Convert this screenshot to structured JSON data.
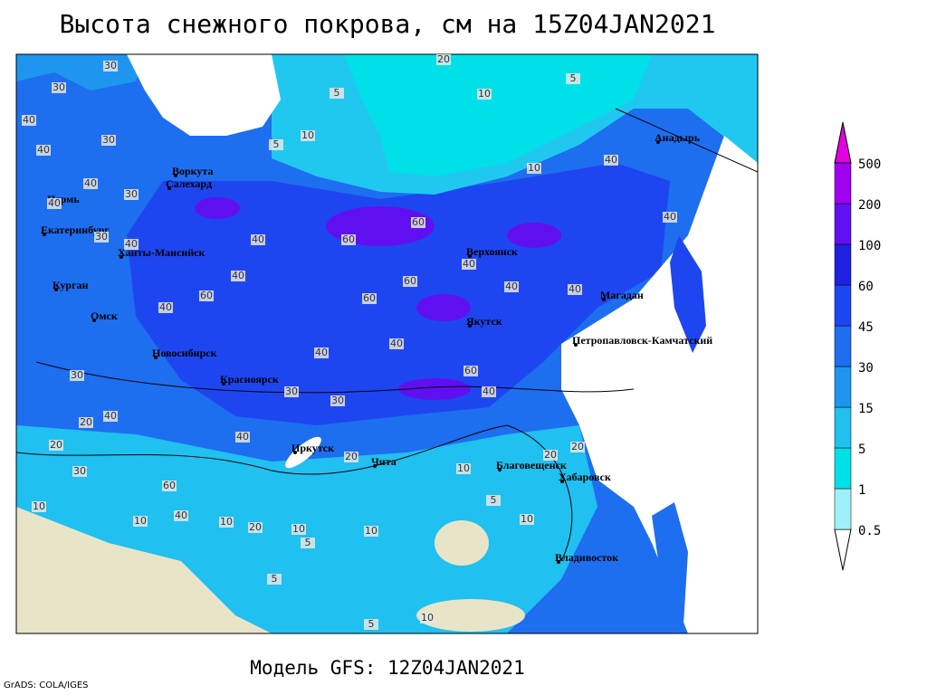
{
  "title": "Высота снежного покрова, см на 15Z04JAN2021",
  "subtitle": "Модель GFS: 12Z04JAN2021",
  "credit": "GrADS: COLA/IGES",
  "colorbar": {
    "levels": [
      0.5,
      1,
      5,
      15,
      30,
      45,
      60,
      100,
      200,
      500
    ],
    "colors": [
      "#ffffff",
      "#a0f0f8",
      "#00e0e8",
      "#20c0f0",
      "#1e96f0",
      "#1e6ef0",
      "#1e46f0",
      "#2020e0",
      "#6010f0",
      "#a000f0",
      "#e000e0"
    ]
  },
  "cities": [
    "Воркута",
    "Салехард",
    "Пермь",
    "Екатеринбург",
    "Ханты-Мансийск",
    "Курган",
    "Омск",
    "Новосибирск",
    "Красноярск",
    "Иркутск",
    "Чита",
    "Благовещенск",
    "Хабаровск",
    "Владивосток",
    "Якутск",
    "Верхоянск",
    "Магадан",
    "Анадырь",
    "Петропавловск-Камчатский"
  ],
  "contour_labels": [
    30,
    30,
    40,
    30,
    40,
    40,
    30,
    40,
    30,
    40,
    40,
    60,
    60,
    40,
    60,
    40,
    60,
    60,
    40,
    40,
    40,
    40,
    40,
    10,
    10,
    10,
    5,
    5,
    20,
    5,
    40,
    40,
    30,
    30,
    30,
    40,
    60,
    40,
    20,
    20,
    30,
    40,
    20,
    10,
    20,
    20,
    5,
    10,
    20,
    10,
    10,
    5,
    10,
    40,
    10,
    5,
    10,
    5,
    10,
    60
  ]
}
